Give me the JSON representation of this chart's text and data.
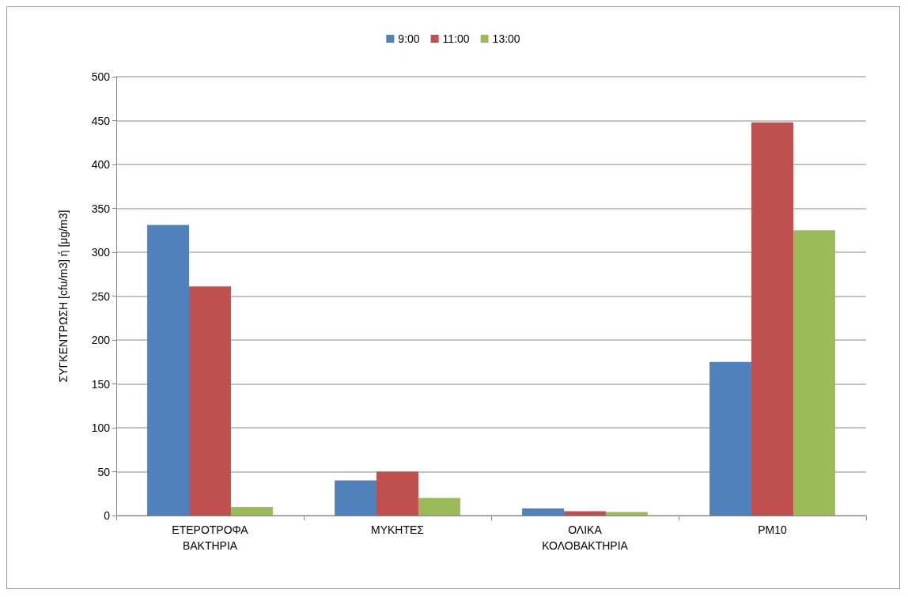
{
  "chart_data": {
    "type": "bar",
    "ylabel": "ΣΥΓΚΕΝΤΡΩΣΗ [cfu/m3] ή [μg/m3]",
    "categories": [
      "ΕΤΕΡΟΤΡΟΦΑ\nΒΑΚΤΗΡΙΑ",
      "ΜΥΚΗΤΕΣ",
      "ΟΛΙΚΑ\nΚΟΛΟΒΑΚΤΗΡΙΑ",
      "PM10"
    ],
    "series": [
      {
        "name": "9:00",
        "color": "#4f81bd",
        "values": [
          331,
          40,
          8,
          175
        ]
      },
      {
        "name": "11:00",
        "color": "#c0504d",
        "values": [
          261,
          50,
          5,
          448
        ]
      },
      {
        "name": "13:00",
        "color": "#9bbb59",
        "values": [
          10,
          20,
          4,
          325
        ]
      }
    ],
    "ylim": [
      0,
      500
    ],
    "yticks": [
      0,
      50,
      100,
      150,
      200,
      250,
      300,
      350,
      400,
      450,
      500
    ],
    "grid": "y",
    "legend": "top"
  }
}
